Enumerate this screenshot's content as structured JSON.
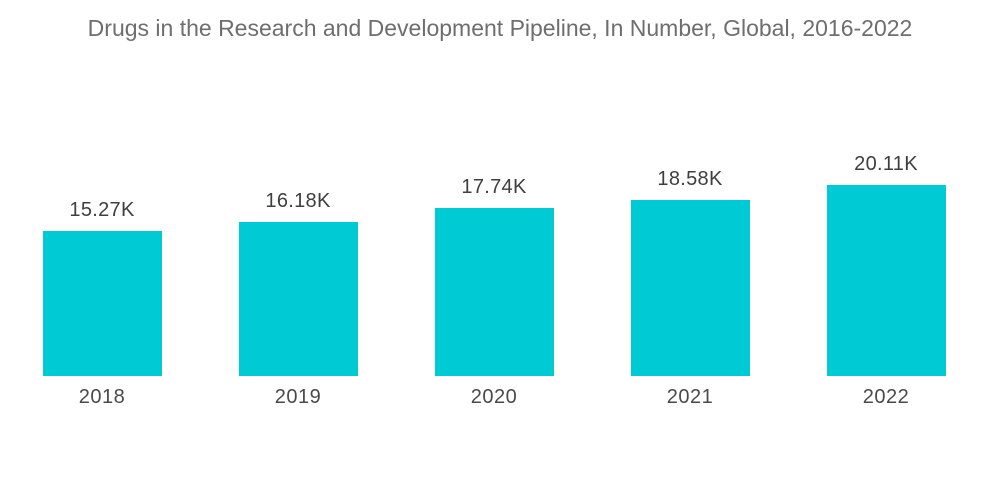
{
  "title": "Drugs in the Research and Development Pipeline, In Number, Global, 2016-2022",
  "colors": {
    "background": "#ffffff",
    "bar": "#00cbd4",
    "title_text": "#6e6e6e",
    "value_label_text": "#3f3f3f",
    "year_label_text": "#4a4a4a"
  },
  "chart_data": {
    "type": "bar",
    "title": "Drugs in the Research and Development Pipeline, In Number, Global, 2016-2022",
    "categories": [
      "2018",
      "2019",
      "2020",
      "2021",
      "2022"
    ],
    "values": [
      15270,
      16180,
      17740,
      18580,
      20110
    ],
    "value_labels": [
      "15.27K",
      "16.18K",
      "17.74K",
      "18.58K",
      "20.11K"
    ],
    "xlabel": "",
    "ylabel": "",
    "ylim": [
      0,
      21000
    ],
    "grid": false,
    "legend": "none",
    "axes_visible": false,
    "bar_color": "#00cbd4"
  }
}
